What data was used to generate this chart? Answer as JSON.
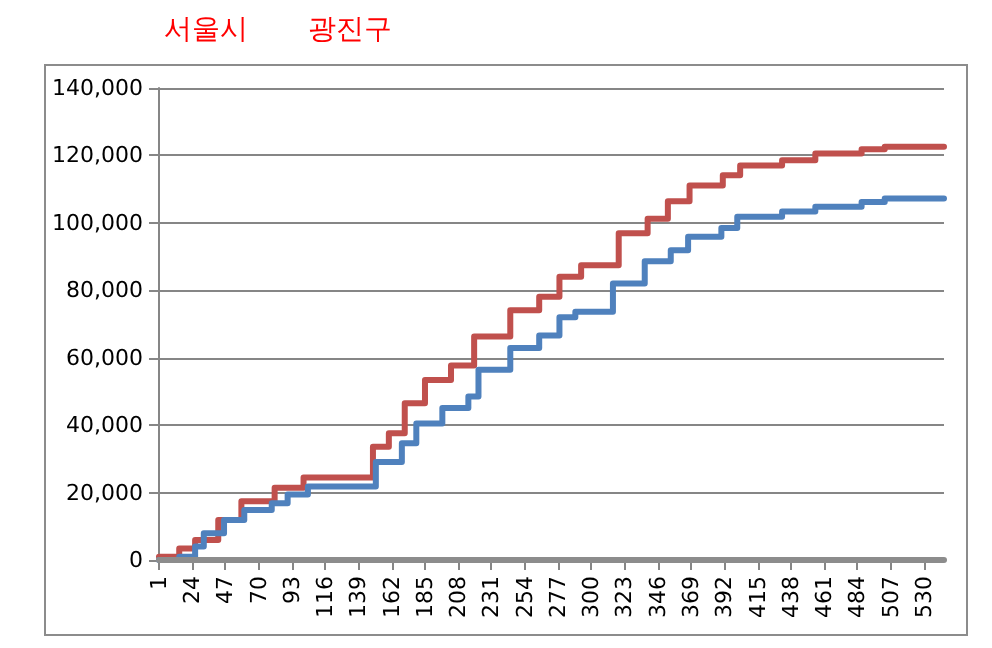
{
  "chart_data": {
    "type": "step",
    "annotations": [
      "서울시",
      "광진구"
    ],
    "xlim": [
      1,
      544
    ],
    "xticks": [
      1,
      24,
      47,
      70,
      93,
      116,
      139,
      162,
      185,
      208,
      231,
      254,
      277,
      300,
      323,
      346,
      369,
      392,
      415,
      438,
      461,
      484,
      507,
      530
    ],
    "ylim": [
      0,
      140000
    ],
    "yticks": [
      0,
      {
        "value": 20000,
        "label": "20,000"
      },
      {
        "value": 40000,
        "label": "40,000"
      },
      {
        "value": 60000,
        "label": "60,000"
      },
      {
        "value": 80000,
        "label": "80,000"
      },
      {
        "value": 100000,
        "label": "100,000"
      },
      {
        "value": 120000,
        "label": "120,000"
      },
      {
        "value": 140000,
        "label": "140,000"
      }
    ],
    "grid": "y",
    "series": [
      {
        "color": "#c0504d",
        "x": [
          1,
          15,
          26,
          42,
          58,
          81,
          101,
          149,
          160,
          171,
          185,
          203,
          219,
          244,
          264,
          278,
          293,
          319,
          339,
          353,
          368,
          391,
          403,
          432,
          455,
          487,
          503,
          544
        ],
        "values": [
          1000,
          3400,
          5900,
          11900,
          17400,
          21400,
          24500,
          33600,
          37600,
          46500,
          53400,
          57700,
          66300,
          74100,
          78100,
          84000,
          87400,
          96900,
          101200,
          106400,
          111100,
          114100,
          117000,
          118600,
          120600,
          121800,
          122600,
          122600
        ]
      },
      {
        "color": "#4f81bd",
        "x": [
          1,
          15,
          26,
          32,
          46,
          60,
          79,
          90,
          104,
          151,
          169,
          179,
          197,
          215,
          222,
          244,
          264,
          278,
          289,
          315,
          337,
          355,
          367,
          390,
          401,
          432,
          455,
          487,
          503,
          544
        ],
        "values": [
          0,
          1000,
          4000,
          7900,
          11900,
          14800,
          16800,
          19400,
          21800,
          29100,
          34600,
          40500,
          45100,
          48500,
          56400,
          62900,
          66600,
          72000,
          73600,
          82000,
          88600,
          91900,
          95900,
          98500,
          101800,
          103400,
          104800,
          106200,
          107200,
          107200
        ]
      },
      {
        "color": "#8c8c8c",
        "x": [
          1,
          544
        ],
        "values": [
          0,
          0
        ]
      }
    ]
  }
}
